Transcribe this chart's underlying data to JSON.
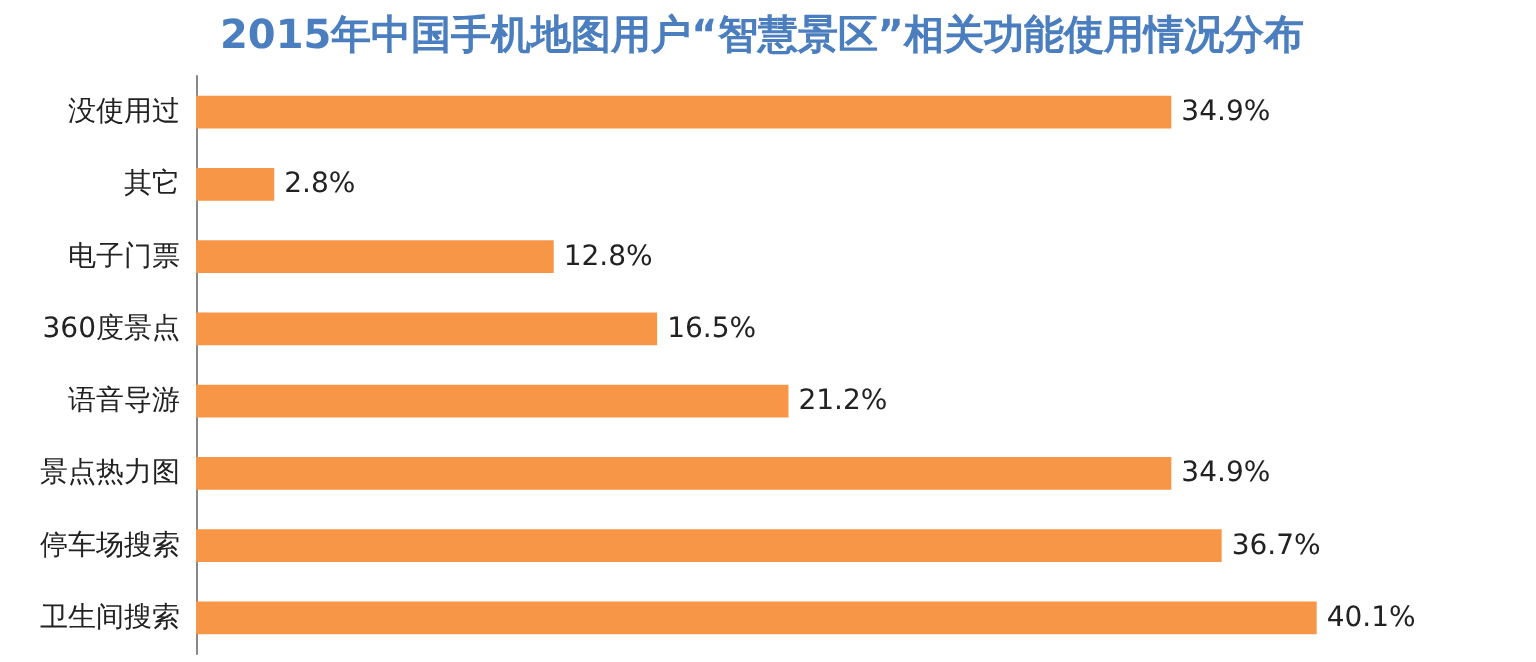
{
  "chart_data": {
    "type": "bar",
    "orientation": "horizontal",
    "title": "2015年中国手机地图用户“智慧景区”相关功能使用情况分布",
    "categories": [
      "没使用过",
      "其它",
      "电子门票",
      "360度景点",
      "语音导游",
      "景点热力图",
      "停车场搜索",
      "卫生间搜索"
    ],
    "values": [
      34.9,
      2.8,
      12.8,
      16.5,
      21.2,
      34.9,
      36.7,
      40.1
    ],
    "value_labels": [
      "34.9%",
      "2.8%",
      "12.8%",
      "16.5%",
      "21.2%",
      "34.9%",
      "36.7%",
      "40.1%"
    ],
    "color": "#f79646"
  }
}
